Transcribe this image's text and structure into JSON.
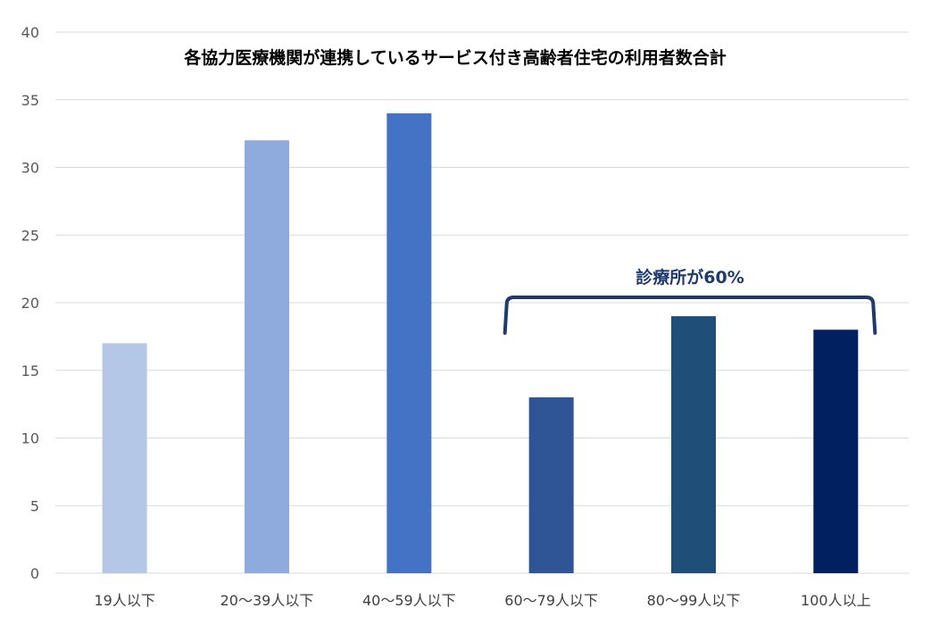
{
  "chart_data": {
    "type": "bar",
    "title": "各協力医療機関が連携しているサービス付き高齢者住宅の利用者数合計",
    "xlabel": "",
    "ylabel": "",
    "categories": [
      "19人以下",
      "20～39人以下",
      "40～59人以下",
      "60～79人以下",
      "80～99人以下",
      "100人以上"
    ],
    "values": [
      17,
      32,
      34,
      13,
      19,
      18
    ],
    "bar_colors": [
      "#b4c7e7",
      "#8faadc",
      "#4472c4",
      "#2f5597",
      "#1f4e79",
      "#002060"
    ],
    "ylim": [
      0,
      40
    ],
    "yticks": [
      "0",
      "5",
      "10",
      "15",
      "20",
      "25",
      "30",
      "35",
      "40"
    ],
    "grid": true,
    "legend": "none",
    "annotation": {
      "text": "診療所が60%",
      "spans_categories": [
        "60～79人以下",
        "100人以上"
      ],
      "bracket_level": 20.4,
      "color": "#1f3a6e"
    }
  }
}
